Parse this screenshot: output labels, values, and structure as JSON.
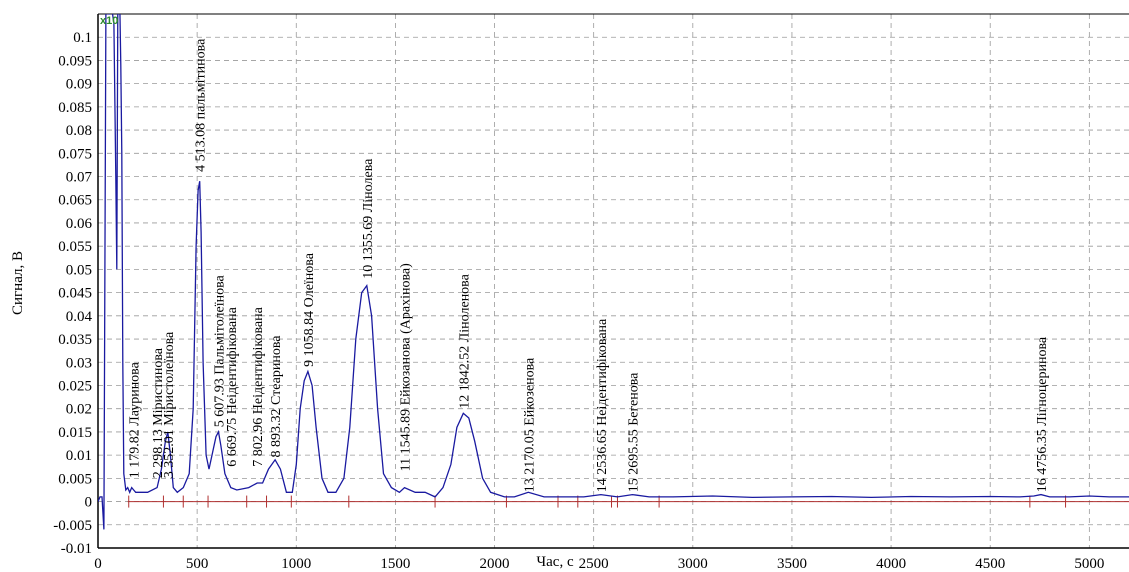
{
  "chart_data": {
    "type": "line",
    "title": "",
    "xlabel": "Час, с",
    "ylabel": "Сигнал, В",
    "xlim": [
      0,
      5200
    ],
    "ylim": [
      -0.01,
      0.105
    ],
    "xticks": [
      0,
      500,
      1000,
      1500,
      2000,
      2500,
      3000,
      3500,
      4000,
      4500,
      5000
    ],
    "yticks": [
      -0.01,
      -0.005,
      0,
      0.005,
      0.01,
      0.015,
      0.02,
      0.025,
      0.03,
      0.035,
      0.04,
      0.045,
      0.05,
      0.055,
      0.06,
      0.065,
      0.07,
      0.075,
      0.08,
      0.085,
      0.09,
      0.095,
      0.1
    ],
    "ytick_labels": [
      "-0.01",
      "-0.005",
      "0",
      "0.005",
      "0.01",
      "0.015",
      "0.02",
      "0.025",
      "0.03",
      "0.035",
      "0.04",
      "0.045",
      "0.05",
      "0.055",
      "0.06",
      "0.065",
      "0.07",
      "0.075",
      "0.08",
      "0.085",
      "0.09",
      "0.095",
      "0.1"
    ],
    "grid": true,
    "multiplier_label": "x10",
    "colors": {
      "signal": "#1a1aa0",
      "baseline": "#b03030",
      "grid": "#9a9a9a",
      "multiplier": "#2e8b2e"
    },
    "series": [
      {
        "x": [
          0,
          10,
          20,
          30,
          40,
          50,
          60,
          70,
          80,
          90,
          95,
          100,
          110,
          115,
          120,
          125,
          130,
          140,
          150,
          160,
          170,
          179.82,
          190,
          200,
          250,
          298.13,
          320,
          340,
          352.01,
          365,
          380,
          400,
          430,
          460,
          480,
          495,
          505,
          513.08,
          520,
          530,
          545,
          560,
          580,
          595,
          607.93,
          620,
          640,
          669.75,
          700,
          760,
          802.96,
          830,
          860,
          893.32,
          920,
          950,
          980,
          1000,
          1020,
          1040,
          1058.84,
          1080,
          1100,
          1130,
          1160,
          1200,
          1240,
          1270,
          1300,
          1330,
          1355.69,
          1380,
          1410,
          1440,
          1480,
          1520,
          1545.89,
          1600,
          1650,
          1700,
          1740,
          1780,
          1810,
          1842.52,
          1870,
          1900,
          1940,
          1980,
          2050,
          2100,
          2170.05,
          2250,
          2350,
          2450,
          2536.65,
          2620,
          2695.55,
          2780,
          2900,
          3100,
          3300,
          3500,
          3700,
          3900,
          4100,
          4300,
          4500,
          4650,
          4720,
          4756.35,
          4800,
          4900,
          5000,
          5100,
          5200
        ],
        "y": [
          0,
          0.001,
          0.001,
          -0.006,
          0.106,
          0.105,
          0.105,
          0.106,
          0.103,
          0.07,
          0.05,
          0.106,
          0.107,
          0.094,
          0.075,
          0.03,
          0.006,
          0.0025,
          0.003,
          0.002,
          0.003,
          0.0025,
          0.002,
          0.002,
          0.002,
          0.003,
          0.007,
          0.013,
          0.015,
          0.01,
          0.003,
          0.002,
          0.003,
          0.006,
          0.02,
          0.055,
          0.067,
          0.069,
          0.058,
          0.03,
          0.01,
          0.007,
          0.011,
          0.014,
          0.015,
          0.012,
          0.006,
          0.003,
          0.0025,
          0.003,
          0.004,
          0.004,
          0.007,
          0.009,
          0.007,
          0.002,
          0.002,
          0.008,
          0.02,
          0.026,
          0.028,
          0.025,
          0.016,
          0.005,
          0.002,
          0.002,
          0.005,
          0.016,
          0.035,
          0.045,
          0.0465,
          0.04,
          0.02,
          0.006,
          0.003,
          0.002,
          0.003,
          0.002,
          0.002,
          0.001,
          0.003,
          0.008,
          0.016,
          0.019,
          0.018,
          0.013,
          0.005,
          0.002,
          0.001,
          0.001,
          0.002,
          0.001,
          0.001,
          0.001,
          0.0015,
          0.001,
          0.0015,
          0.001,
          0.001,
          0.0012,
          0.0009,
          0.001,
          0.0011,
          0.0009,
          0.0011,
          0.001,
          0.0011,
          0.001,
          0.0012,
          0.0015,
          0.001,
          0.001,
          0.0012,
          0.001,
          0.001
        ]
      }
    ],
    "baseline_markers": [
      155,
      330,
      430,
      555,
      750,
      850,
      975,
      1265,
      1700,
      2060,
      2320,
      2420,
      2590,
      2620,
      2830,
      4700,
      4880
    ],
    "peaks": [
      {
        "x": 179.82,
        "label": "1 179.82 Лауринова",
        "label_y": 0.005
      },
      {
        "x": 298.13,
        "label": "2 298.13 Міристинова",
        "label_y": 0.005
      },
      {
        "x": 352.01,
        "label": "3 352.01 Міристолеїнова",
        "label_y": 0.005
      },
      {
        "x": 513.08,
        "label": "4 513.08 пальмітинова",
        "label_y": 0.071
      },
      {
        "x": 607.93,
        "label": "5 607.93 Пальмітолеїнова",
        "label_y": 0.016
      },
      {
        "x": 669.75,
        "label": "6 669.75 Неідентифікована",
        "label_y": 0.0075
      },
      {
        "x": 802.96,
        "label": "7 802.96 Неідентифікована",
        "label_y": 0.0075
      },
      {
        "x": 893.32,
        "label": "8 893.32 Стеаринова",
        "label_y": 0.0095
      },
      {
        "x": 1058.84,
        "label": "9 1058.84 Олеїнова",
        "label_y": 0.029
      },
      {
        "x": 1355.69,
        "label": "10 1355.69 Лінолева",
        "label_y": 0.048
      },
      {
        "x": 1545.89,
        "label": "11 1545.89 Ейкозанова (Арахінова)",
        "label_y": 0.0065
      },
      {
        "x": 1842.52,
        "label": "12 1842.52 Ліноленова",
        "label_y": 0.02
      },
      {
        "x": 2170.05,
        "label": "13 2170.05 Ейкозенова",
        "label_y": 0.002
      },
      {
        "x": 2536.65,
        "label": "14 2536.65 Неідентифікована",
        "label_y": 0.002
      },
      {
        "x": 2695.55,
        "label": "15 2695.55 Бегенова",
        "label_y": 0.002
      },
      {
        "x": 4756.35,
        "label": "16 4756.35 Лігноцеринова",
        "label_y": 0.002
      }
    ]
  }
}
